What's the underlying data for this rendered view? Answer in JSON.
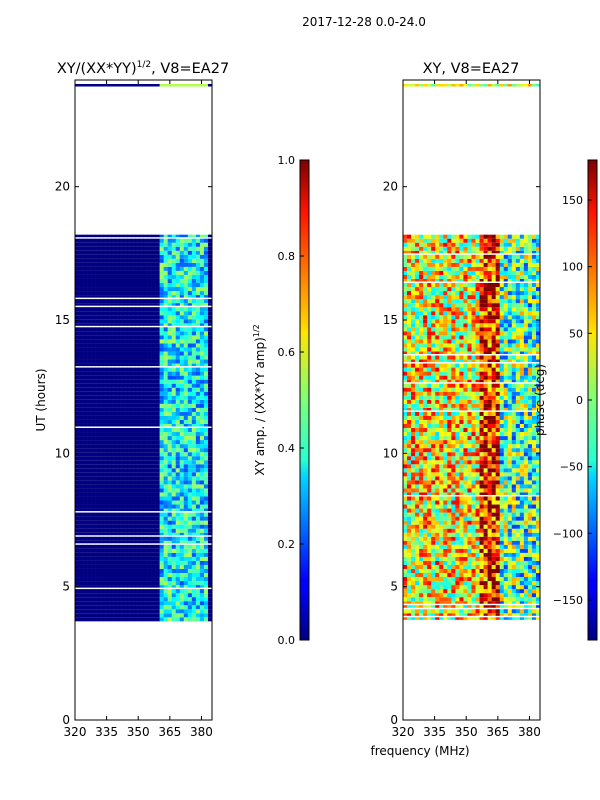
{
  "suptitle": "2017-12-28 0.0-24.0",
  "shared_xlabel": "frequency (MHz)",
  "chart_data": [
    {
      "type": "heatmap",
      "title_main": "XY/(XX*YY)",
      "title_sup": "1/2",
      "title_suffix": ", V8=EA27",
      "xlabel": "",
      "ylabel": "UT (hours)",
      "xlim": [
        320,
        385
      ],
      "ylim": [
        0,
        24
      ],
      "x_ticks": [
        320,
        335,
        350,
        365,
        380
      ],
      "y_ticks": [
        0,
        5,
        10,
        15,
        20
      ],
      "data_band_hours": [
        3.7,
        18.2
      ],
      "colormap": "jet",
      "colorbar": {
        "label_main": "XY amp. / (XX*YY amp)",
        "label_sup": "1/2",
        "range": [
          0.0,
          1.0
        ],
        "ticks": [
          "0.0",
          "0.2",
          "0.4",
          "0.6",
          "0.8",
          "1.0"
        ]
      }
    },
    {
      "type": "heatmap",
      "title_main": "XY, V8=EA27",
      "title_sup": "",
      "title_suffix": "",
      "xlabel": "",
      "ylabel": "",
      "xlim": [
        320,
        385
      ],
      "ylim": [
        0,
        24
      ],
      "x_ticks": [
        320,
        335,
        350,
        365,
        380
      ],
      "y_ticks": [
        0,
        5,
        10,
        15,
        20
      ],
      "data_band_hours": [
        3.7,
        18.2
      ],
      "colormap": "jet",
      "colorbar": {
        "label_main": "phase (deg)",
        "label_sup": "",
        "range": [
          -180,
          180
        ],
        "ticks": [
          "−150",
          "−100",
          "−50",
          "0",
          "50",
          "100",
          "150"
        ]
      }
    }
  ]
}
